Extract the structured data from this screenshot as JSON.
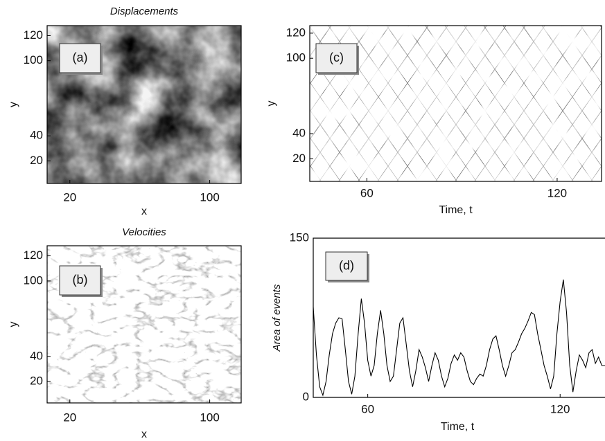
{
  "chart_data": [
    {
      "type": "image",
      "title": "Displacements",
      "annotation": "(a)",
      "xlabel": "x",
      "ylabel": "y",
      "xlim": [
        7,
        118
      ],
      "ylim": [
        2,
        128
      ],
      "xticks": [
        20,
        100
      ],
      "yticks": [
        20,
        40,
        100,
        120
      ]
    },
    {
      "type": "image",
      "title": "Velocities",
      "annotation": "(b)",
      "xlabel": "x",
      "ylabel": "y",
      "xlim": [
        7,
        118
      ],
      "ylim": [
        3,
        128
      ],
      "xticks": [
        20,
        100
      ],
      "yticks": [
        20,
        40,
        100,
        120
      ]
    },
    {
      "type": "image",
      "annotation": "(c)",
      "xlabel": "Time, t",
      "ylabel": "y",
      "xlim": [
        42,
        134
      ],
      "ylim": [
        2,
        126
      ],
      "xticks": [
        60,
        120
      ],
      "yticks": [
        20,
        40,
        100,
        120
      ]
    },
    {
      "type": "line",
      "annotation": "(d)",
      "xlabel": "Time, t",
      "ylabel": "Area of events",
      "color": "#000000",
      "xlim": [
        43,
        134
      ],
      "ylim": [
        0,
        150
      ],
      "xticks": [
        60,
        120
      ],
      "yticks": [
        0,
        150
      ],
      "x": [
        43,
        44,
        45,
        46,
        47,
        48,
        49,
        50,
        51,
        52,
        53,
        54,
        55,
        56,
        57,
        58,
        59,
        60,
        61,
        62,
        63,
        64,
        65,
        66,
        67,
        68,
        69,
        70,
        71,
        72,
        73,
        74,
        75,
        76,
        77,
        78,
        79,
        80,
        81,
        82,
        83,
        84,
        85,
        86,
        87,
        88,
        89,
        90,
        91,
        92,
        93,
        94,
        95,
        96,
        97,
        98,
        99,
        100,
        101,
        102,
        103,
        104,
        105,
        106,
        107,
        108,
        109,
        110,
        111,
        112,
        113,
        114,
        115,
        116,
        117,
        118,
        119,
        120,
        121,
        122,
        123,
        124,
        125,
        126,
        127,
        128,
        129,
        130,
        131,
        132,
        133,
        134
      ],
      "values": [
        85,
        40,
        10,
        2,
        15,
        40,
        60,
        70,
        75,
        74,
        45,
        15,
        3,
        20,
        60,
        93,
        70,
        35,
        20,
        30,
        60,
        82,
        60,
        30,
        15,
        20,
        45,
        70,
        75,
        50,
        25,
        10,
        25,
        45,
        38,
        28,
        15,
        30,
        42,
        35,
        20,
        10,
        18,
        32,
        40,
        35,
        42,
        38,
        25,
        15,
        12,
        18,
        22,
        20,
        30,
        45,
        55,
        58,
        45,
        30,
        20,
        30,
        42,
        45,
        52,
        60,
        65,
        72,
        80,
        78,
        60,
        45,
        30,
        20,
        8,
        20,
        60,
        90,
        111,
        80,
        30,
        5,
        25,
        40,
        35,
        28,
        42,
        45,
        32,
        38,
        30,
        30
      ]
    }
  ]
}
